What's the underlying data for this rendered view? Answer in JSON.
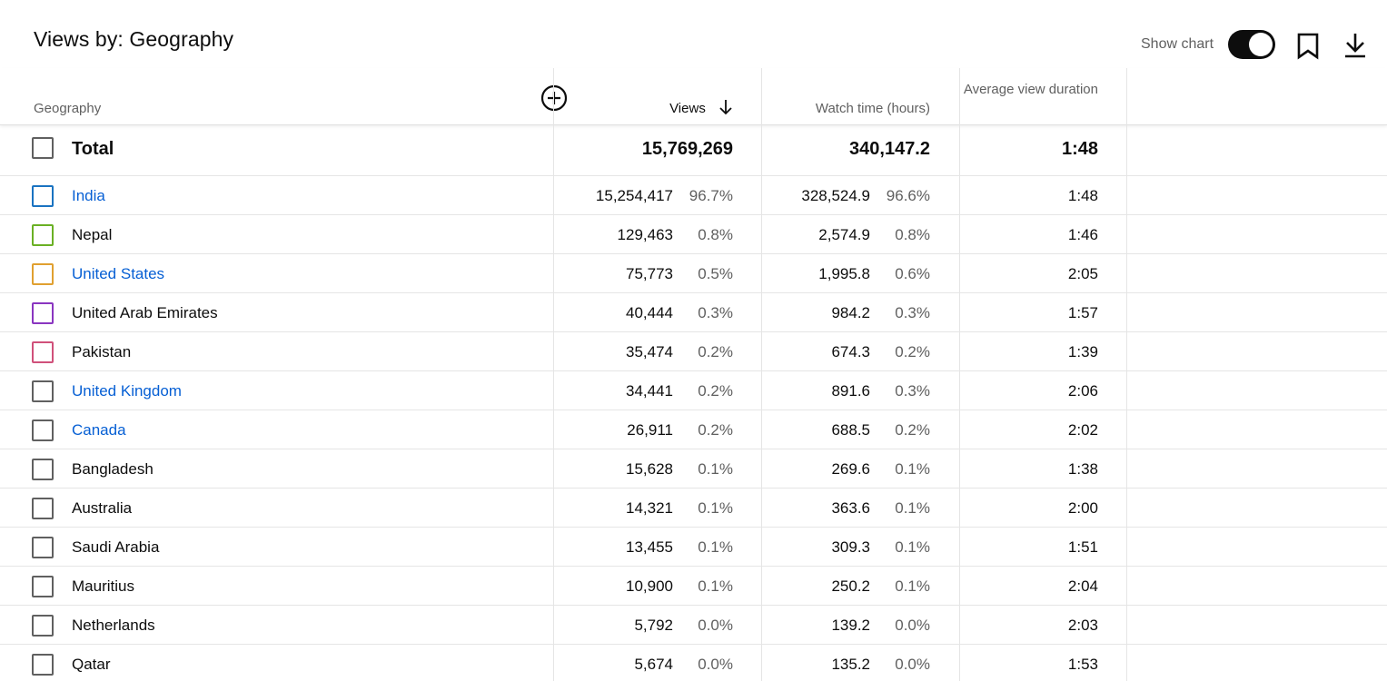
{
  "title": "Views by: Geography",
  "toolbar": {
    "show_chart_label": "Show chart",
    "show_chart_on": true,
    "bookmark_icon": "bookmark-icon",
    "download_icon": "download-icon"
  },
  "columns": {
    "geography": "Geography",
    "views": "Views",
    "watch_time": "Watch time (hours)",
    "avg_view_duration": "Average view duration",
    "sort_icon": "arrow-down-icon",
    "add_column_icon": "plus-circle-icon"
  },
  "total": {
    "label": "Total",
    "views": "15,769,269",
    "watch_time": "340,147.2",
    "avg_view_duration": "1:48"
  },
  "rows": [
    {
      "name": "India",
      "link": true,
      "color": "#1a73c1",
      "views": "15,254,417",
      "views_pct": "96.7%",
      "watch_time": "328,524.9",
      "watch_pct": "96.6%",
      "avg": "1:48"
    },
    {
      "name": "Nepal",
      "link": false,
      "color": "#6ab024",
      "views": "129,463",
      "views_pct": "0.8%",
      "watch_time": "2,574.9",
      "watch_pct": "0.8%",
      "avg": "1:46"
    },
    {
      "name": "United States",
      "link": true,
      "color": "#e0a030",
      "views": "75,773",
      "views_pct": "0.5%",
      "watch_time": "1,995.8",
      "watch_pct": "0.6%",
      "avg": "2:05"
    },
    {
      "name": "United Arab Emirates",
      "link": false,
      "color": "#8a35c0",
      "views": "40,444",
      "views_pct": "0.3%",
      "watch_time": "984.2",
      "watch_pct": "0.3%",
      "avg": "1:57"
    },
    {
      "name": "Pakistan",
      "link": false,
      "color": "#d0507a",
      "views": "35,474",
      "views_pct": "0.2%",
      "watch_time": "674.3",
      "watch_pct": "0.2%",
      "avg": "1:39"
    },
    {
      "name": "United Kingdom",
      "link": true,
      "color": "#606060",
      "views": "34,441",
      "views_pct": "0.2%",
      "watch_time": "891.6",
      "watch_pct": "0.3%",
      "avg": "2:06"
    },
    {
      "name": "Canada",
      "link": true,
      "color": "#606060",
      "views": "26,911",
      "views_pct": "0.2%",
      "watch_time": "688.5",
      "watch_pct": "0.2%",
      "avg": "2:02"
    },
    {
      "name": "Bangladesh",
      "link": false,
      "color": "#606060",
      "views": "15,628",
      "views_pct": "0.1%",
      "watch_time": "269.6",
      "watch_pct": "0.1%",
      "avg": "1:38"
    },
    {
      "name": "Australia",
      "link": false,
      "color": "#606060",
      "views": "14,321",
      "views_pct": "0.1%",
      "watch_time": "363.6",
      "watch_pct": "0.1%",
      "avg": "2:00"
    },
    {
      "name": "Saudi Arabia",
      "link": false,
      "color": "#606060",
      "views": "13,455",
      "views_pct": "0.1%",
      "watch_time": "309.3",
      "watch_pct": "0.1%",
      "avg": "1:51"
    },
    {
      "name": "Mauritius",
      "link": false,
      "color": "#606060",
      "views": "10,900",
      "views_pct": "0.1%",
      "watch_time": "250.2",
      "watch_pct": "0.1%",
      "avg": "2:04"
    },
    {
      "name": "Netherlands",
      "link": false,
      "color": "#606060",
      "views": "5,792",
      "views_pct": "0.0%",
      "watch_time": "139.2",
      "watch_pct": "0.0%",
      "avg": "2:03"
    },
    {
      "name": "Qatar",
      "link": false,
      "color": "#606060",
      "views": "5,674",
      "views_pct": "0.0%",
      "watch_time": "135.2",
      "watch_pct": "0.0%",
      "avg": "1:53"
    }
  ]
}
